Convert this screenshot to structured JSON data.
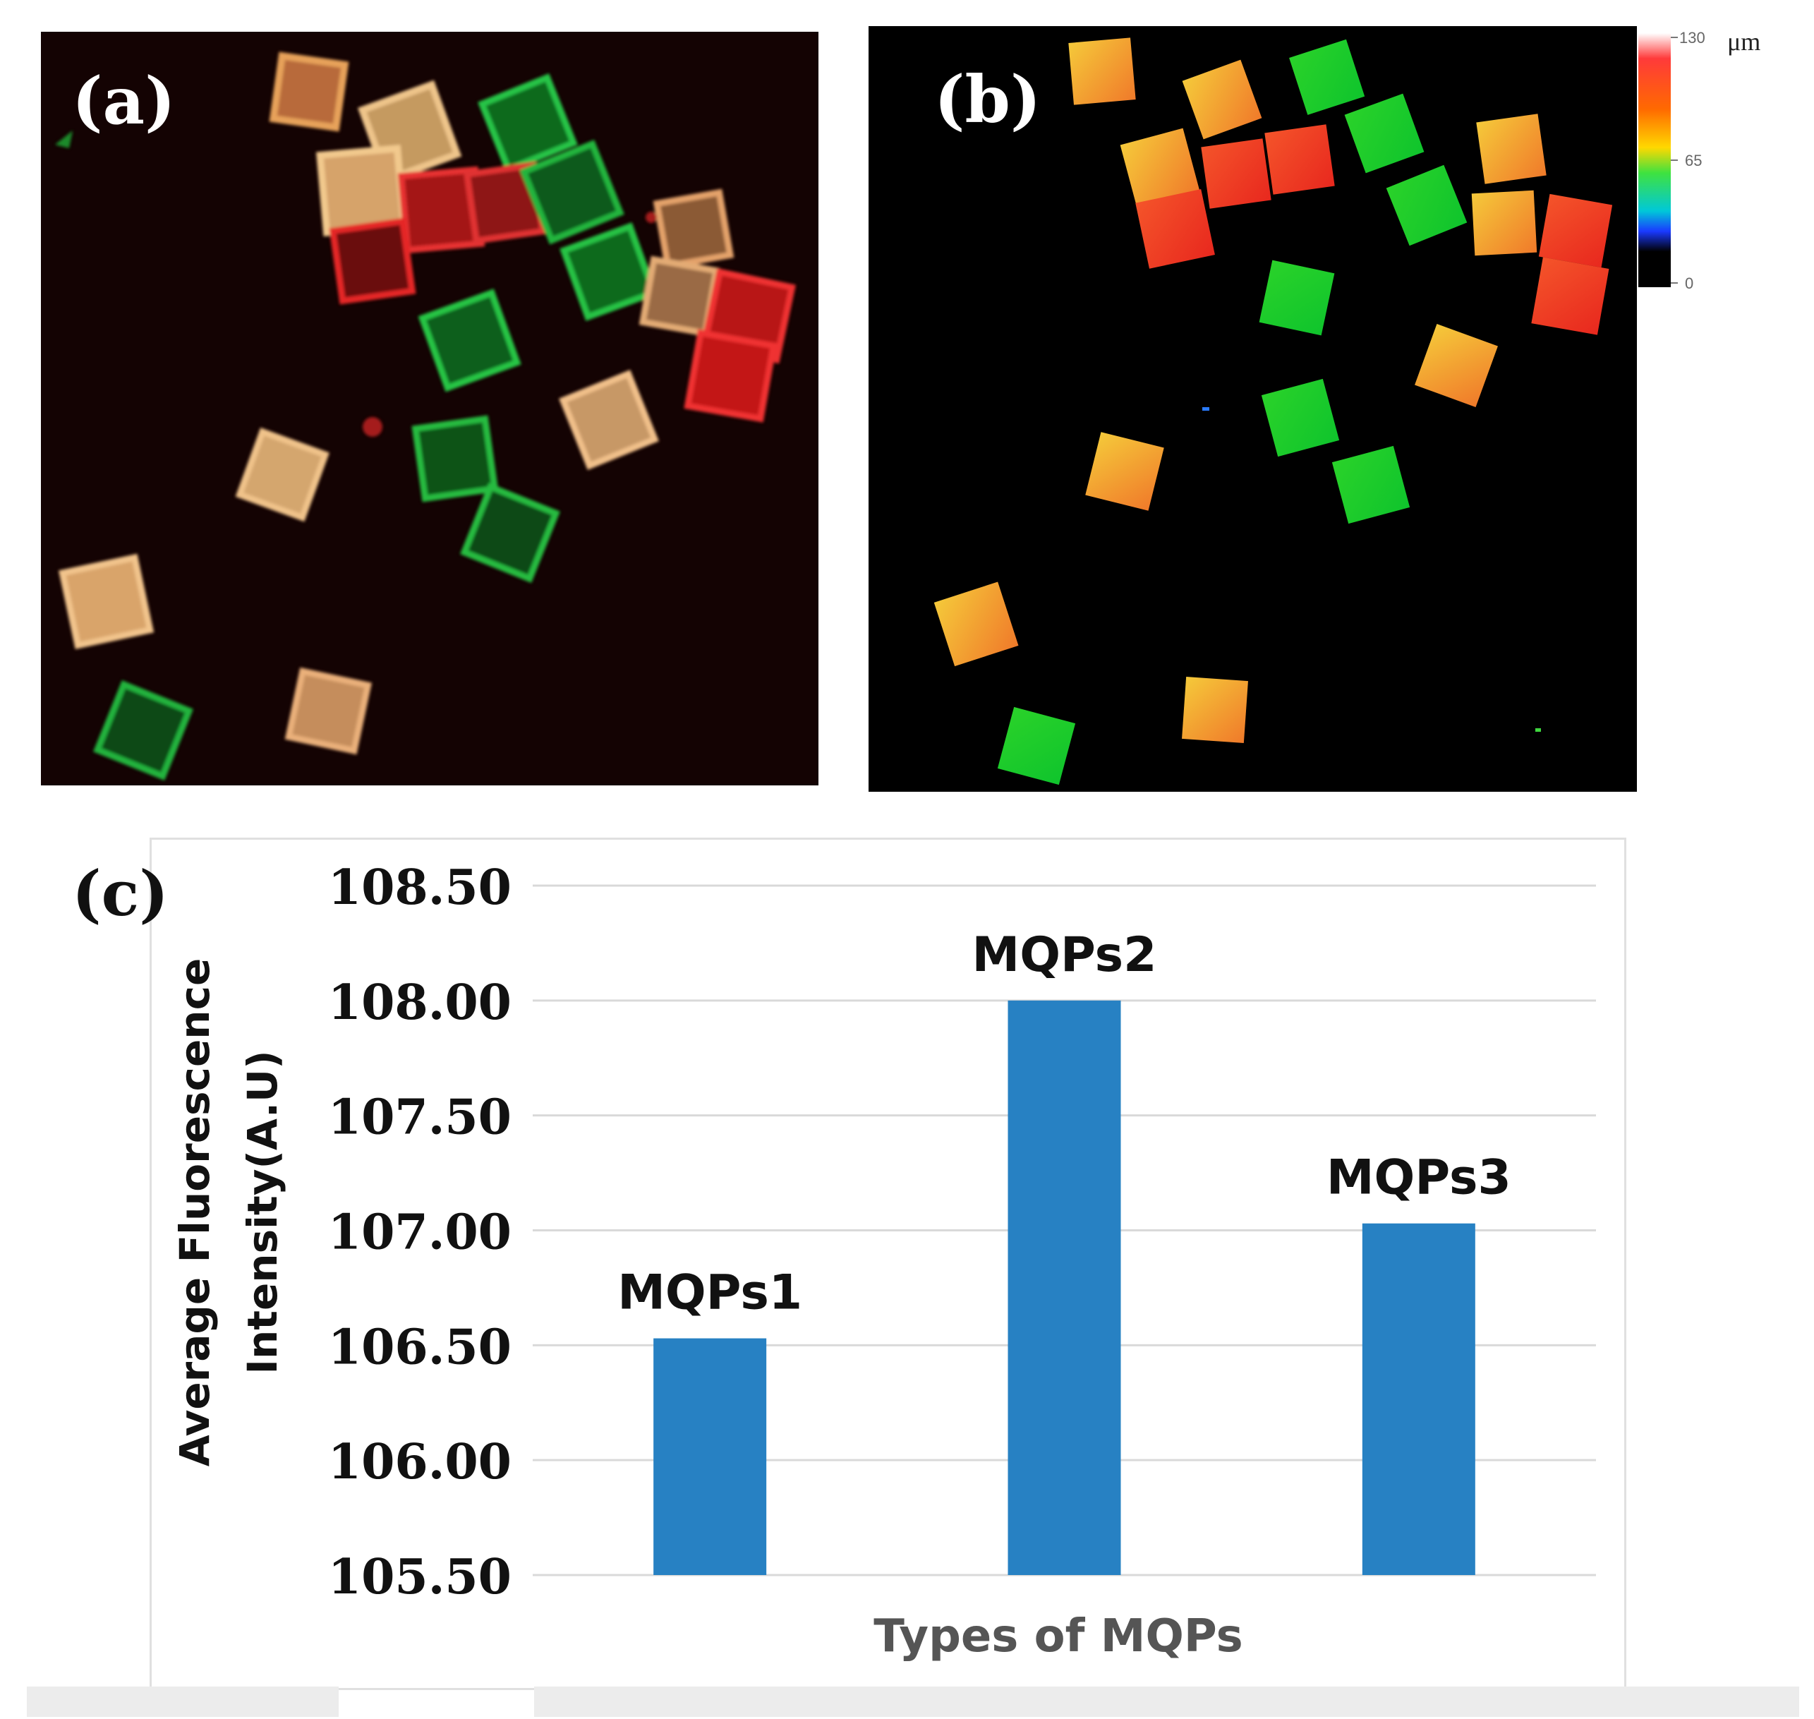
{
  "panels": {
    "a": {
      "label": "(a)"
    },
    "b": {
      "label": "(b)"
    },
    "c": {
      "label": "(c)"
    }
  },
  "colorbar": {
    "unit": "μm",
    "ticks": [
      "130",
      "65",
      "0"
    ]
  },
  "colors": {
    "bar": "#2781c3",
    "gridline": "#d9d9d9",
    "axis_text": "#111111",
    "xlabel_text": "#555555",
    "fluor_green": "#22c23a",
    "fluor_red": "#e02323",
    "fluor_orange": "#e59a3b"
  },
  "chart_data": {
    "type": "bar",
    "title": "",
    "categories": [
      "MQPs1",
      "MQPs2",
      "MQPs3"
    ],
    "values": [
      106.53,
      108.0,
      107.03
    ],
    "data_labels": [
      "MQPs1",
      "MQPs2",
      "MQPs3"
    ],
    "xlabel": "Types of MQPs",
    "ylabel_line1": "Average Fluorescence",
    "ylabel_line2": "Intensity(A.U)",
    "ylim": [
      105.5,
      108.5
    ],
    "yticks": [
      "108.50",
      "108.00",
      "107.50",
      "107.00",
      "106.50",
      "106.00",
      "105.50"
    ],
    "grid": true,
    "legend": "none"
  }
}
